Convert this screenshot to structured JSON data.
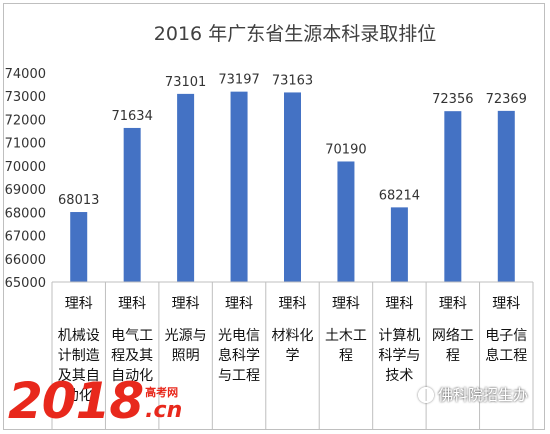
{
  "chart_data": {
    "type": "bar",
    "title": "2016 年广东省生源本科录取排位",
    "categories": [
      "理科",
      "理科",
      "理科",
      "理科",
      "理科",
      "理科",
      "理科",
      "理科",
      "理科"
    ],
    "majors": [
      [
        "机械设",
        "计制造",
        "及其自",
        "动化"
      ],
      [
        "电气工",
        "程及其",
        "自动化"
      ],
      [
        "光源与",
        "照明"
      ],
      [
        "光电信",
        "息科学",
        "与工程"
      ],
      [
        "材料化",
        "学"
      ],
      [
        "土木工",
        "程"
      ],
      [
        "计算机",
        "科学与",
        "技术"
      ],
      [
        "网络工",
        "程"
      ],
      [
        "电子信",
        "息工程"
      ]
    ],
    "values": [
      68013,
      71634,
      73101,
      73197,
      73163,
      70190,
      68214,
      72356,
      72369
    ],
    "ylim": [
      65000,
      74000
    ],
    "yticks": [
      "65000",
      "66000",
      "67000",
      "68000",
      "69000",
      "70000",
      "71000",
      "72000",
      "73000",
      "74000"
    ],
    "grid": false,
    "bar_color": "#4472c4"
  },
  "watermark": {
    "logo": "2018",
    "sub": "高考网",
    "domain": ".cn",
    "wechat": "佛科院招生办",
    "wechat_icon": "wechat-icon"
  }
}
